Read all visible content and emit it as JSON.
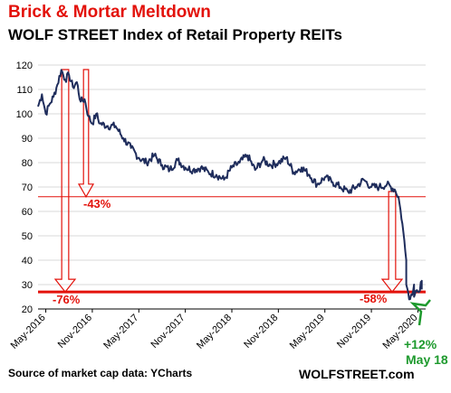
{
  "header": {
    "title": "Brick & Mortar Meltdown",
    "subtitle": "WOLF STREET Index of Retail Property REITs"
  },
  "footer": {
    "source": "Source of market cap data: YCharts",
    "brand": "WOLFSTREET.com"
  },
  "colors": {
    "line": "#1f2d5c",
    "annotation": "#e3120b",
    "rebound": "#1e9a2e",
    "grid": "#d9d9d9"
  },
  "chart_data": {
    "type": "line",
    "title": "WOLF STREET Index of Retail Property REITs",
    "xlabel": "",
    "ylabel": "",
    "ylim": [
      20,
      120
    ],
    "yticks": [
      20,
      30,
      40,
      50,
      60,
      70,
      80,
      90,
      100,
      110,
      120
    ],
    "xlim": [
      "2016-04",
      "2020-06"
    ],
    "xticks": [
      "May-2016",
      "Nov-2016",
      "May-2017",
      "Nov-2017",
      "May-2018",
      "Nov-2018",
      "May-2019",
      "Nov-2019",
      "May-2020"
    ],
    "xtick_dates": [
      "2016-05",
      "2016-11",
      "2017-05",
      "2017-11",
      "2018-05",
      "2018-11",
      "2019-05",
      "2019-11",
      "2020-05"
    ],
    "grid": true,
    "series": [
      {
        "name": "",
        "x": [
          "2016-04",
          "2016-04",
          "2016-05",
          "2016-05",
          "2016-06",
          "2016-06",
          "2016-07",
          "2016-07",
          "2016-08",
          "2016-08",
          "2016-09",
          "2016-09",
          "2016-10",
          "2016-10",
          "2016-11",
          "2016-11",
          "2016-12",
          "2017-01",
          "2017-02",
          "2017-03",
          "2017-04",
          "2017-05",
          "2017-06",
          "2017-07",
          "2017-08",
          "2017-09",
          "2017-10",
          "2017-11",
          "2017-12",
          "2018-01",
          "2018-02",
          "2018-03",
          "2018-04",
          "2018-05",
          "2018-06",
          "2018-07",
          "2018-08",
          "2018-09",
          "2018-10",
          "2018-11",
          "2018-12",
          "2019-01",
          "2019-02",
          "2019-03",
          "2019-04",
          "2019-05",
          "2019-06",
          "2019-07",
          "2019-08",
          "2019-09",
          "2019-10",
          "2019-11",
          "2019-12",
          "2020-01",
          "2020-02",
          "2020-02",
          "2020-03",
          "2020-03",
          "2020-03",
          "2020-04",
          "2020-04",
          "2020-04",
          "2020-05",
          "2020-05",
          "2020-05"
        ],
        "values": [
          103,
          108,
          100,
          104,
          107,
          112,
          118,
          114,
          116,
          111,
          113,
          105,
          106,
          99,
          96,
          100,
          96,
          95,
          95,
          90,
          86,
          82,
          80,
          83,
          79,
          77,
          81,
          78,
          77,
          78,
          76,
          75,
          73,
          78,
          80,
          83,
          77,
          81,
          79,
          80,
          82,
          76,
          78,
          75,
          71,
          74,
          72,
          70,
          68,
          70,
          73,
          70,
          70,
          71,
          69,
          66,
          55,
          40,
          30,
          24,
          30,
          25,
          27,
          31,
          28
        ]
      }
    ],
    "reference_lines": [
      {
        "y": 66,
        "label": "-43%"
      },
      {
        "y": 27,
        "label": "-76%"
      }
    ],
    "annotations": [
      {
        "text": "-43%"
      },
      {
        "text": "-76%"
      },
      {
        "text": "-58%"
      },
      {
        "text": "+12%"
      },
      {
        "text": "May 18"
      }
    ]
  }
}
